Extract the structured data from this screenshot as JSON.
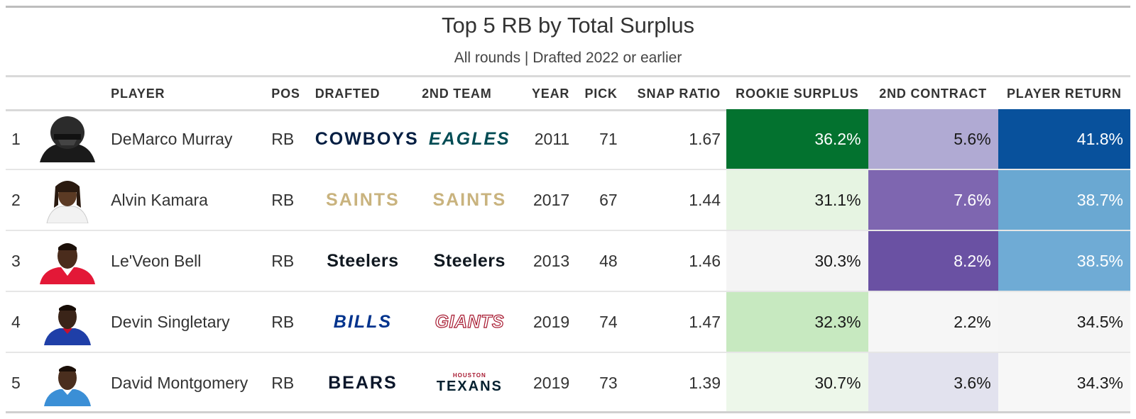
{
  "title": "Top 5 RB by Total Surplus",
  "subtitle": "All rounds | Drafted 2022 or earlier",
  "columns": [
    "",
    "",
    "PLAYER",
    "POS",
    "DRAFTED",
    "2ND TEAM",
    "YEAR",
    "PICK",
    "SNAP RATIO",
    "ROOKIE SURPLUS",
    "2ND CONTRACT",
    "PLAYER RETURN"
  ],
  "colors": {
    "cowboys": "#041e42",
    "eagles": "#004c54",
    "saints": "#c9b37e",
    "steelers": "#101820",
    "bills": "#00338d",
    "giants": "#a71930",
    "bears": "#0b162a",
    "texans": "#03202f"
  },
  "rows": [
    {
      "rank": "1",
      "player": "DeMarco Murray",
      "pos": "RB",
      "drafted_logo": "COWBOYS",
      "drafted_color": "#041e42",
      "drafted_icon": "cowboys-wordmark",
      "second_logo": "EAGLES",
      "second_color": "#004c54",
      "second_icon": "eagles-wordmark",
      "year": "2011",
      "pick": "71",
      "snap": "1.67",
      "rookie": "36.2%",
      "contract": "5.6%",
      "return": "41.8%",
      "rookie_bg": "#03722f",
      "rookie_fg": "#ffffff",
      "contract_bg": "#b0aad3",
      "contract_fg": "#1a1a1a",
      "return_bg": "#08519c",
      "return_fg": "#ffffff",
      "headshot": "silhouette-helmet"
    },
    {
      "rank": "2",
      "player": "Alvin Kamara",
      "pos": "RB",
      "drafted_logo": "SAINTS",
      "drafted_color": "#c9b37e",
      "drafted_icon": "saints-wordmark",
      "second_logo": "SAINTS",
      "second_color": "#c9b37e",
      "second_icon": "saints-wordmark",
      "year": "2017",
      "pick": "67",
      "snap": "1.44",
      "rookie": "31.1%",
      "contract": "7.6%",
      "return": "38.7%",
      "rookie_bg": "#e6f4e2",
      "rookie_fg": "#1a1a1a",
      "contract_bg": "#7e66b0",
      "contract_fg": "#ffffff",
      "return_bg": "#6aa8d2",
      "return_fg": "#ffffff",
      "headshot": "player-white-jersey"
    },
    {
      "rank": "3",
      "player": "Le'Veon Bell",
      "pos": "RB",
      "drafted_logo": "Steelers",
      "drafted_color": "#101820",
      "drafted_icon": "steelers-wordmark",
      "second_logo": "Steelers",
      "second_color": "#101820",
      "second_icon": "steelers-wordmark",
      "year": "2013",
      "pick": "48",
      "snap": "1.46",
      "rookie": "30.3%",
      "contract": "8.2%",
      "return": "38.5%",
      "rookie_bg": "#f4f4f4",
      "rookie_fg": "#1a1a1a",
      "contract_bg": "#6a51a3",
      "contract_fg": "#ffffff",
      "return_bg": "#6fabd5",
      "return_fg": "#ffffff",
      "headshot": "player-red-jersey"
    },
    {
      "rank": "4",
      "player": "Devin Singletary",
      "pos": "RB",
      "drafted_logo": "BILLS",
      "drafted_color": "#00338d",
      "drafted_icon": "bills-wordmark",
      "second_logo": "GIANTS",
      "second_color": "#a71930",
      "second_icon": "giants-wordmark",
      "year": "2019",
      "pick": "74",
      "snap": "1.47",
      "rookie": "32.3%",
      "contract": "2.2%",
      "return": "34.5%",
      "rookie_bg": "#c7e9c0",
      "rookie_fg": "#1a1a1a",
      "contract_bg": "#f6f6f6",
      "contract_fg": "#1a1a1a",
      "return_bg": "#f5f5f5",
      "return_fg": "#1a1a1a",
      "headshot": "player-blue-jersey"
    },
    {
      "rank": "5",
      "player": "David Montgomery",
      "pos": "RB",
      "drafted_logo": "BEARS",
      "drafted_color": "#0b162a",
      "drafted_icon": "bears-wordmark",
      "second_logo": "TEXANS",
      "second_color": "#03202f",
      "second_icon": "texans-wordmark",
      "second_sup": "HOUSTON",
      "year": "2019",
      "pick": "73",
      "snap": "1.39",
      "rookie": "30.7%",
      "contract": "3.6%",
      "return": "34.3%",
      "rookie_bg": "#edf7ea",
      "rookie_fg": "#1a1a1a",
      "contract_bg": "#e2e2ee",
      "contract_fg": "#1a1a1a",
      "return_bg": "#f7f7f7",
      "return_fg": "#1a1a1a",
      "headshot": "player-lightblue-jersey"
    }
  ],
  "chart_data": {
    "type": "table",
    "title": "Top 5 RB by Total Surplus",
    "subtitle": "All rounds | Drafted 2022 or earlier",
    "columns": [
      "PLAYER",
      "POS",
      "DRAFTED",
      "2ND TEAM",
      "YEAR",
      "PICK",
      "SNAP RATIO",
      "ROOKIE SURPLUS",
      "2ND CONTRACT",
      "PLAYER RETURN"
    ],
    "rows": [
      [
        "DeMarco Murray",
        "RB",
        "COWBOYS",
        "EAGLES",
        2011,
        71,
        1.67,
        36.2,
        5.6,
        41.8
      ],
      [
        "Alvin Kamara",
        "RB",
        "SAINTS",
        "SAINTS",
        2017,
        67,
        1.44,
        31.1,
        7.6,
        38.7
      ],
      [
        "Le'Veon Bell",
        "RB",
        "Steelers",
        "Steelers",
        2013,
        48,
        1.46,
        30.3,
        8.2,
        38.5
      ],
      [
        "Devin Singletary",
        "RB",
        "BILLS",
        "GIANTS",
        2019,
        74,
        1.47,
        32.3,
        2.2,
        34.5
      ],
      [
        "David Montgomery",
        "RB",
        "BEARS",
        "TEXANS",
        2019,
        73,
        1.39,
        30.7,
        3.6,
        34.3
      ]
    ],
    "color_scales": {
      "ROOKIE SURPLUS": "greens",
      "2ND CONTRACT": "purples",
      "PLAYER RETURN": "blues"
    }
  }
}
